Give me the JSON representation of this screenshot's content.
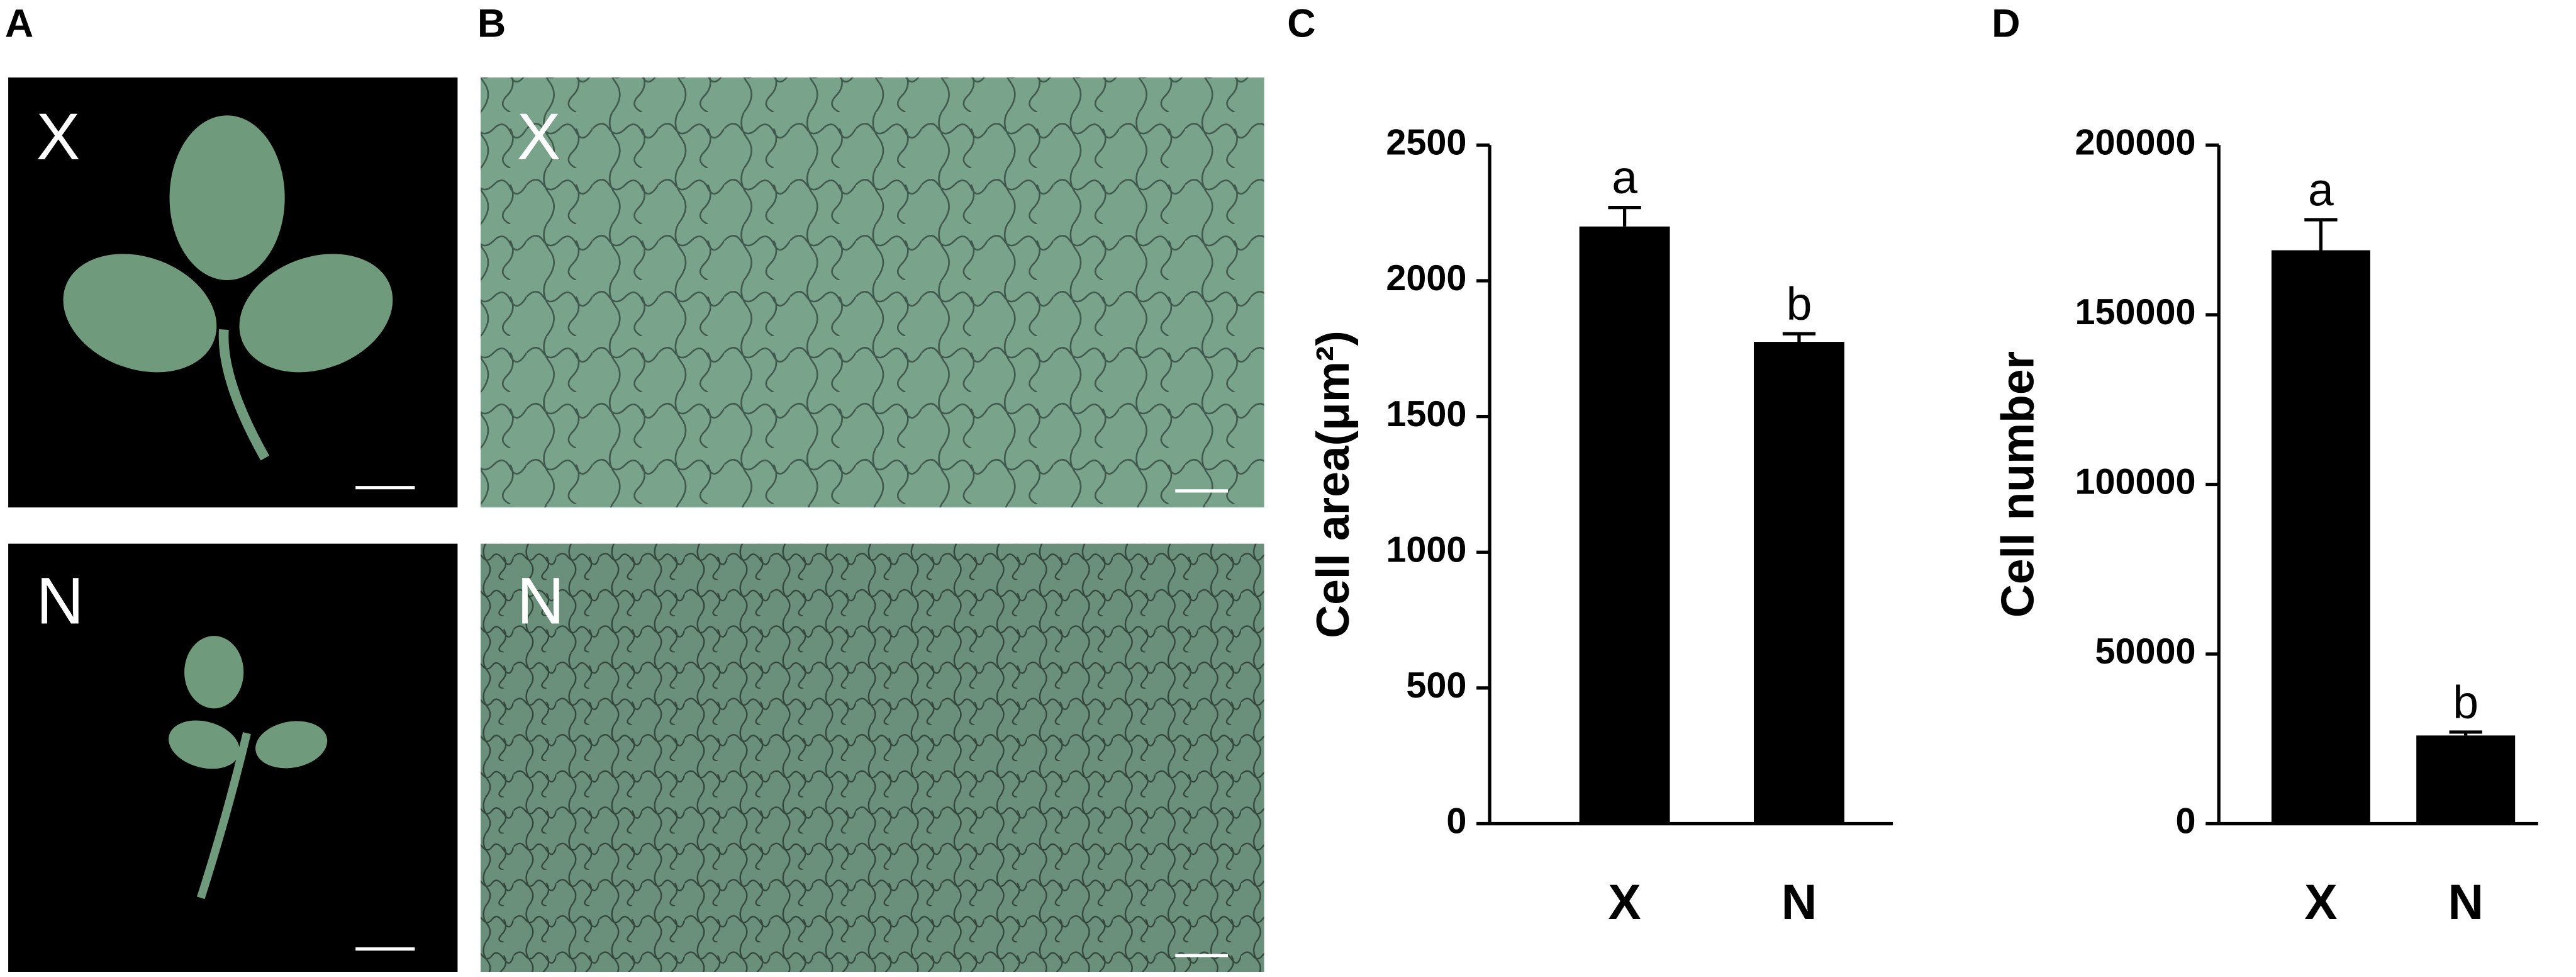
{
  "panel_labels": [
    "A",
    "B",
    "C",
    "D"
  ],
  "image_labels": [
    "X",
    "N"
  ],
  "chart_data": [
    {
      "type": "bar",
      "ylabel": "Cell area(μm²)",
      "categories": [
        "X",
        "N"
      ],
      "values": [
        2200,
        1775
      ],
      "errors": [
        70,
        30
      ],
      "annotations": [
        "a",
        "b"
      ],
      "color": "#000000",
      "ylim": [
        0,
        2500
      ],
      "yticks": [
        0,
        500,
        1000,
        1500,
        2000,
        2500
      ]
    },
    {
      "type": "bar",
      "ylabel": "Cell number",
      "categories": [
        "X",
        "N"
      ],
      "values": [
        169000,
        26000
      ],
      "errors": [
        9000,
        1000
      ],
      "annotations": [
        "a",
        "b"
      ],
      "color": "#000000",
      "ylim": [
        0,
        200000
      ],
      "yticks": [
        0,
        50000,
        100000,
        150000,
        200000
      ]
    }
  ]
}
